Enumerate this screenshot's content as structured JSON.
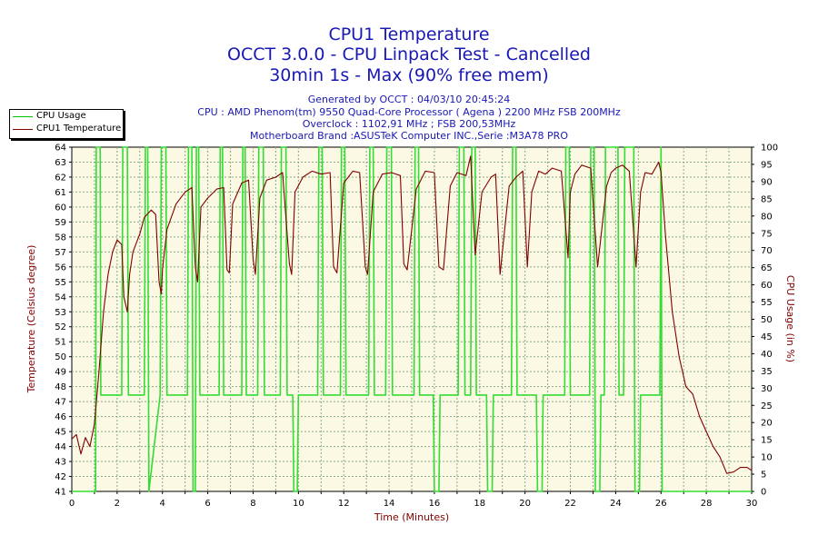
{
  "header": {
    "title_line1": "CPU1 Temperature",
    "title_line2": "OCCT 3.0.0 - CPU Linpack Test - Cancelled",
    "title_line3": "30min 1s - Max (90% free mem)",
    "info_line1": "Generated by OCCT : 04/03/10 20:45:24",
    "info_line2": "CPU : AMD Phenom(tm) 9550 Quad-Core Processor ( Agena ) 2200 MHz FSB 200MHz",
    "info_line3": "Overclock : 1102,91 MHz ; FSB 200,53MHz",
    "info_line4": "Motherboard Brand :ASUSTeK Computer INC.,Serie :M3A78 PRO"
  },
  "legend": {
    "items": [
      {
        "label": "CPU Usage",
        "color": "#00c800"
      },
      {
        "label": "CPU1 Temperature",
        "color": "#800000"
      }
    ]
  },
  "colors": {
    "title": "#1818b4",
    "axis_label": "#800000",
    "plot_bg": "#fbf8e4",
    "grid": "#88aa88",
    "usage": "#33dd33",
    "temperature": "#800000"
  },
  "chart_data": {
    "type": "line",
    "xlabel": "Time (Minutes)",
    "ylabel_left": "Temperature (Celsius degree)",
    "ylabel_right": "CPU Usage (in %)",
    "xlim": [
      0,
      30
    ],
    "ylim_left": [
      41,
      64
    ],
    "ylim_right": [
      0,
      100
    ],
    "x_ticks": [
      0,
      2,
      4,
      6,
      8,
      10,
      12,
      14,
      16,
      18,
      20,
      22,
      24,
      26,
      28,
      30
    ],
    "y_ticks_left": [
      41,
      42,
      43,
      44,
      45,
      46,
      47,
      48,
      49,
      50,
      51,
      52,
      53,
      54,
      55,
      56,
      57,
      58,
      59,
      60,
      61,
      62,
      63,
      64
    ],
    "y_ticks_right": [
      0,
      5,
      10,
      15,
      20,
      25,
      30,
      35,
      40,
      45,
      50,
      55,
      60,
      65,
      70,
      75,
      80,
      85,
      90,
      95,
      100
    ],
    "grid": true,
    "legend_position": "top-left",
    "series": [
      {
        "name": "CPU1 Temperature",
        "axis": "left",
        "x": [
          0,
          0.2,
          0.4,
          0.6,
          0.8,
          1.0,
          1.2,
          1.4,
          1.6,
          1.8,
          2.0,
          2.2,
          2.3,
          2.45,
          2.55,
          2.7,
          3.0,
          3.2,
          3.5,
          3.7,
          3.85,
          3.95,
          4.0,
          4.2,
          4.6,
          5.0,
          5.3,
          5.45,
          5.55,
          5.7,
          6.0,
          6.4,
          6.7,
          6.85,
          6.95,
          7.1,
          7.5,
          7.8,
          8.0,
          8.1,
          8.3,
          8.6,
          9.0,
          9.3,
          9.6,
          9.7,
          9.85,
          10.2,
          10.6,
          11.0,
          11.4,
          11.55,
          11.7,
          12.0,
          12.4,
          12.7,
          12.95,
          13.05,
          13.3,
          13.7,
          14.1,
          14.5,
          14.65,
          14.8,
          15.2,
          15.6,
          16.0,
          16.2,
          16.4,
          16.7,
          17.0,
          17.4,
          17.6,
          17.8,
          18.1,
          18.5,
          18.7,
          18.9,
          19.3,
          19.6,
          19.9,
          20.1,
          20.3,
          20.6,
          20.9,
          21.2,
          21.6,
          21.9,
          22.0,
          22.2,
          22.5,
          22.9,
          23.2,
          23.6,
          23.8,
          24.0,
          24.3,
          24.6,
          24.9,
          25.1,
          25.3,
          25.6,
          25.9,
          26.0,
          26.2,
          26.5,
          26.8,
          27.1,
          27.4,
          27.7,
          28.0,
          28.3,
          28.6,
          28.9,
          29.2,
          29.5,
          29.8,
          30.0
        ],
        "values": [
          44.5,
          44.8,
          43.5,
          44.6,
          44.0,
          45.5,
          49.0,
          53.0,
          55.5,
          57.0,
          57.8,
          57.5,
          54.0,
          53.0,
          55.5,
          57.0,
          58.2,
          59.3,
          59.8,
          59.5,
          55.0,
          54.2,
          55.8,
          58.5,
          60.2,
          61.0,
          61.3,
          56.0,
          55.0,
          60.0,
          60.6,
          61.2,
          61.3,
          55.8,
          55.6,
          60.2,
          61.6,
          61.8,
          56.5,
          55.5,
          60.6,
          61.8,
          62.0,
          62.3,
          56.2,
          55.5,
          61.0,
          62.0,
          62.4,
          62.2,
          62.3,
          56.0,
          55.6,
          61.6,
          62.4,
          62.3,
          56.0,
          55.5,
          61.0,
          62.2,
          62.3,
          62.1,
          56.2,
          55.8,
          61.2,
          62.4,
          62.3,
          56.0,
          55.8,
          61.4,
          62.3,
          62.1,
          63.4,
          56.8,
          61.0,
          62.0,
          62.2,
          55.5,
          61.4,
          62.0,
          62.4,
          56.0,
          61.0,
          62.4,
          62.2,
          62.6,
          62.4,
          56.6,
          61.0,
          62.2,
          62.8,
          62.6,
          56.0,
          61.4,
          62.3,
          62.6,
          62.8,
          62.4,
          56.0,
          61.0,
          62.3,
          62.2,
          63.0,
          62.3,
          58.0,
          53.0,
          50.0,
          48.0,
          47.5,
          46.0,
          45.0,
          44.0,
          43.3,
          42.2,
          42.3,
          42.6,
          42.6,
          42.4
        ]
      },
      {
        "name": "CPU Usage",
        "axis": "right",
        "x": [
          0,
          1.05,
          1.08,
          1.25,
          1.28,
          2.2,
          2.25,
          2.45,
          2.5,
          3.2,
          3.25,
          3.35,
          3.4,
          3.9,
          3.95,
          4.15,
          4.2,
          5.1,
          5.15,
          5.3,
          5.35,
          5.45,
          5.5,
          5.6,
          5.65,
          6.5,
          6.55,
          6.65,
          6.7,
          7.5,
          7.55,
          7.65,
          7.7,
          8.2,
          8.25,
          8.45,
          8.5,
          9.2,
          9.25,
          9.45,
          9.5,
          9.75,
          9.8,
          9.95,
          10.0,
          10.85,
          10.9,
          11.05,
          11.1,
          11.85,
          11.9,
          12.05,
          12.1,
          13.1,
          13.15,
          13.3,
          13.35,
          13.85,
          13.9,
          14.1,
          14.15,
          15.1,
          15.15,
          15.3,
          15.35,
          15.95,
          16.0,
          16.2,
          16.25,
          17.05,
          17.1,
          17.3,
          17.35,
          17.6,
          17.65,
          17.8,
          17.85,
          18.3,
          18.35,
          18.55,
          18.6,
          19.4,
          19.45,
          19.6,
          19.65,
          20.5,
          20.55,
          20.75,
          20.8,
          21.75,
          21.8,
          21.95,
          22.0,
          22.85,
          22.9,
          23.05,
          23.1,
          23.3,
          23.35,
          23.5,
          23.55,
          24.1,
          24.15,
          24.35,
          24.4,
          24.8,
          24.85,
          25.05,
          25.1,
          25.95,
          26.0,
          26.05,
          26.1,
          30.0
        ],
        "values": [
          0,
          0,
          100,
          100,
          28,
          28,
          100,
          100,
          28,
          28,
          100,
          100,
          0,
          28,
          100,
          100,
          28,
          28,
          100,
          100,
          0,
          0,
          100,
          100,
          28,
          28,
          100,
          100,
          28,
          28,
          100,
          100,
          28,
          28,
          100,
          100,
          28,
          28,
          100,
          100,
          28,
          28,
          0,
          0,
          28,
          28,
          100,
          100,
          28,
          28,
          100,
          100,
          28,
          28,
          100,
          100,
          28,
          28,
          100,
          100,
          28,
          28,
          100,
          100,
          28,
          28,
          0,
          0,
          28,
          28,
          100,
          100,
          28,
          28,
          100,
          100,
          28,
          28,
          0,
          0,
          28,
          28,
          100,
          100,
          28,
          28,
          0,
          0,
          28,
          28,
          100,
          100,
          28,
          28,
          100,
          100,
          0,
          0,
          28,
          28,
          100,
          100,
          28,
          28,
          100,
          100,
          0,
          0,
          28,
          28,
          100,
          0,
          0,
          0
        ]
      }
    ]
  }
}
